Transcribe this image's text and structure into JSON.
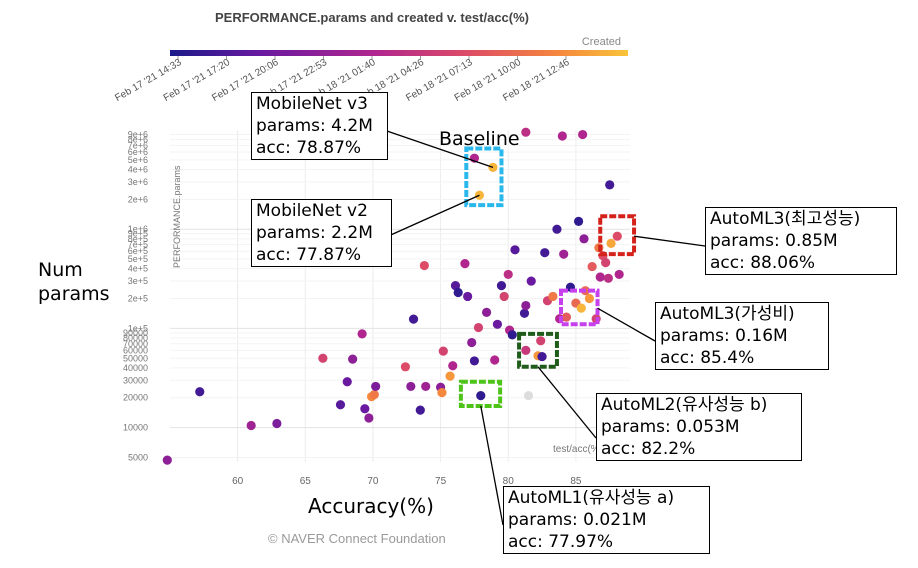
{
  "chart_data": {
    "type": "scatter",
    "title": "PERFORMANCE.params and created v. test/acc(%)",
    "xlabel": "Accuracy(%)",
    "ylabel": "Num params",
    "x_axis_title": "test/acc(%)",
    "y_axis_title": "PERFORMANCE.params",
    "xlim": [
      55,
      89
    ],
    "ylim": [
      4500,
      10000000
    ],
    "y_scale": "log",
    "grid": true,
    "x_ticks": [
      "60",
      "65",
      "70",
      "75",
      "80",
      "85"
    ],
    "y_ticks": [
      {
        "v": 5000,
        "label": "5000"
      },
      {
        "v": 10000,
        "label": "10000"
      },
      {
        "v": 20000,
        "label": "20000"
      },
      {
        "v": 30000,
        "label": "30000"
      },
      {
        "v": 40000,
        "label": "40000"
      },
      {
        "v": 50000,
        "label": "50000"
      },
      {
        "v": 60000,
        "label": "60000"
      },
      {
        "v": 70000,
        "label": "70000"
      },
      {
        "v": 80000,
        "label": "80000"
      },
      {
        "v": 90000,
        "label": "90000"
      },
      {
        "v": 100000,
        "label": "1e+5"
      },
      {
        "v": 200000,
        "label": "2e+5"
      },
      {
        "v": 300000,
        "label": "3e+5"
      },
      {
        "v": 400000,
        "label": "4e+5"
      },
      {
        "v": 500000,
        "label": "5e+5"
      },
      {
        "v": 600000,
        "label": "6e+5"
      },
      {
        "v": 700000,
        "label": "7e+5"
      },
      {
        "v": 800000,
        "label": "8e+5"
      },
      {
        "v": 900000,
        "label": "9e+5"
      },
      {
        "v": 1000000,
        "label": "1e+6"
      },
      {
        "v": 2000000,
        "label": "2e+6"
      },
      {
        "v": 3000000,
        "label": "3e+6"
      },
      {
        "v": 4000000,
        "label": "4e+6"
      },
      {
        "v": 5000000,
        "label": "5e+6"
      },
      {
        "v": 6000000,
        "label": "6e+6"
      },
      {
        "v": 7000000,
        "label": "7e+6"
      },
      {
        "v": 8000000,
        "label": "8e+6"
      },
      {
        "v": 9000000,
        "label": "9e+6"
      }
    ],
    "colorbar": {
      "label": "Created",
      "colors": [
        "#1b1a8a",
        "#6a1aa0",
        "#b0268e",
        "#dd4c66",
        "#f5883d",
        "#f8c43a"
      ],
      "ticks": [
        "Feb 17 '21 14:33",
        "Feb 17 '21 17:20",
        "Feb 17 '21 20:06",
        "Feb 17 '21 22:53",
        "Feb 18 '21 01:40",
        "Feb 18 '21 04:26",
        "Feb 18 '21 07:13",
        "Feb 18 '21 10:00",
        "Feb 18 '21 12:46"
      ]
    },
    "points": [
      {
        "x": 54.8,
        "y": 4700,
        "c": 0.3
      },
      {
        "x": 57.2,
        "y": 23000,
        "c": 0.1
      },
      {
        "x": 61.0,
        "y": 10500,
        "c": 0.35
      },
      {
        "x": 62.9,
        "y": 11000,
        "c": 0.25
      },
      {
        "x": 66.3,
        "y": 50000,
        "c": 0.55
      },
      {
        "x": 67.6,
        "y": 17000,
        "c": 0.15
      },
      {
        "x": 68.1,
        "y": 29000,
        "c": 0.2
      },
      {
        "x": 68.5,
        "y": 49000,
        "c": 0.3
      },
      {
        "x": 69.2,
        "y": 88000,
        "c": 0.4
      },
      {
        "x": 69.4,
        "y": 15500,
        "c": 0.2
      },
      {
        "x": 69.9,
        "y": 20500,
        "c": 0.8
      },
      {
        "x": 70.1,
        "y": 21500,
        "c": 0.75
      },
      {
        "x": 70.2,
        "y": 26000,
        "c": 0.25
      },
      {
        "x": 69.7,
        "y": 12500,
        "c": 0.3
      },
      {
        "x": 72.4,
        "y": 41000,
        "c": 0.6
      },
      {
        "x": 72.8,
        "y": 26000,
        "c": 0.3
      },
      {
        "x": 73.0,
        "y": 124000,
        "c": 0.1
      },
      {
        "x": 73.5,
        "y": 15000,
        "c": 0.1
      },
      {
        "x": 73.8,
        "y": 430000,
        "c": 0.6
      },
      {
        "x": 73.9,
        "y": 26000,
        "c": 0.35
      },
      {
        "x": 75.0,
        "y": 25500,
        "c": 0.3
      },
      {
        "x": 75.1,
        "y": 22500,
        "c": 0.8
      },
      {
        "x": 75.2,
        "y": 59000,
        "c": 0.55
      },
      {
        "x": 75.7,
        "y": 33000,
        "c": 0.85
      },
      {
        "x": 75.9,
        "y": 42000,
        "c": 0.4
      },
      {
        "x": 76.1,
        "y": 270000,
        "c": 0.15
      },
      {
        "x": 76.3,
        "y": 230000,
        "c": 0.05
      },
      {
        "x": 76.8,
        "y": 450000,
        "c": 0.4
      },
      {
        "x": 77.0,
        "y": 210000,
        "c": 0.2
      },
      {
        "x": 77.3,
        "y": 72000,
        "c": 0.3
      },
      {
        "x": 77.5,
        "y": 47000,
        "c": 0.1
      },
      {
        "x": 77.5,
        "y": 5200000,
        "c": 0.4
      },
      {
        "x": 77.8,
        "y": 102000,
        "c": 0.55
      },
      {
        "x": 77.87,
        "y": 2200000,
        "c": 0.95
      },
      {
        "x": 77.97,
        "y": 21000,
        "c": 0.05
      },
      {
        "x": 78.4,
        "y": 145000,
        "c": 0.3
      },
      {
        "x": 78.87,
        "y": 4200000,
        "c": 0.95
      },
      {
        "x": 79.0,
        "y": 48000,
        "c": 0.4
      },
      {
        "x": 79.2,
        "y": 110000,
        "c": 0.2
      },
      {
        "x": 79.5,
        "y": 270000,
        "c": 0.1
      },
      {
        "x": 79.7,
        "y": 210000,
        "c": 0.55
      },
      {
        "x": 80.0,
        "y": 350000,
        "c": 0.45
      },
      {
        "x": 80.1,
        "y": 96000,
        "c": 0.4
      },
      {
        "x": 80.3,
        "y": 86000,
        "c": 0.05
      },
      {
        "x": 80.5,
        "y": 620000,
        "c": 0.15
      },
      {
        "x": 81.2,
        "y": 142000,
        "c": 0.1
      },
      {
        "x": 81.3,
        "y": 9500000,
        "c": 0.45
      },
      {
        "x": 81.3,
        "y": 170000,
        "c": 0.3
      },
      {
        "x": 81.3,
        "y": 60000,
        "c": 0.5
      },
      {
        "x": 81.5,
        "y": 21000,
        "c": -1
      },
      {
        "x": 81.7,
        "y": 300000,
        "c": 0.2
      },
      {
        "x": 82.2,
        "y": 53000,
        "c": 0.85
      },
      {
        "x": 82.4,
        "y": 75000,
        "c": 0.55
      },
      {
        "x": 82.5,
        "y": 52000,
        "c": 0.1
      },
      {
        "x": 82.7,
        "y": 580000,
        "c": 0.1
      },
      {
        "x": 82.9,
        "y": 190000,
        "c": 0.55
      },
      {
        "x": 83.3,
        "y": 210000,
        "c": 0.75
      },
      {
        "x": 83.6,
        "y": 1000000,
        "c": 0.1
      },
      {
        "x": 83.8,
        "y": 125000,
        "c": 0.4
      },
      {
        "x": 84.0,
        "y": 8700000,
        "c": 0.4
      },
      {
        "x": 84.1,
        "y": 560000,
        "c": 0.35
      },
      {
        "x": 84.3,
        "y": 130000,
        "c": 0.65
      },
      {
        "x": 84.6,
        "y": 260000,
        "c": 0.05
      },
      {
        "x": 85.0,
        "y": 180000,
        "c": 0.7
      },
      {
        "x": 85.2,
        "y": 1200000,
        "c": 0.05
      },
      {
        "x": 85.4,
        "y": 160000,
        "c": 0.95
      },
      {
        "x": 85.5,
        "y": 9000000,
        "c": 0.4
      },
      {
        "x": 85.6,
        "y": 800000,
        "c": 0.3
      },
      {
        "x": 85.7,
        "y": 240000,
        "c": 0.7
      },
      {
        "x": 86.0,
        "y": 200000,
        "c": 0.85
      },
      {
        "x": 86.2,
        "y": 420000,
        "c": 0.65
      },
      {
        "x": 86.5,
        "y": 125000,
        "c": 0.55
      },
      {
        "x": 86.7,
        "y": 650000,
        "c": 0.75
      },
      {
        "x": 86.8,
        "y": 330000,
        "c": 0.4
      },
      {
        "x": 87.0,
        "y": 540000,
        "c": 0.6
      },
      {
        "x": 87.2,
        "y": 460000,
        "c": 0.55
      },
      {
        "x": 87.4,
        "y": 320000,
        "c": 0.45
      },
      {
        "x": 87.5,
        "y": 2800000,
        "c": 0.1
      },
      {
        "x": 87.6,
        "y": 720000,
        "c": 0.9
      },
      {
        "x": 88.06,
        "y": 850000,
        "c": 0.6
      },
      {
        "x": 88.2,
        "y": 350000,
        "c": 0.4
      }
    ],
    "highlight_boxes": [
      {
        "name": "baseline",
        "x0": 76.9,
        "x1": 79.5,
        "y0": 1750000,
        "y1": 6500000,
        "color": "#2ab8ec"
      },
      {
        "name": "automl3-best",
        "x0": 86.8,
        "x1": 89.3,
        "y0": 560000,
        "y1": 1350000,
        "color": "#d4221a"
      },
      {
        "name": "automl3-value",
        "x0": 83.9,
        "x1": 86.6,
        "y0": 110000,
        "y1": 240000,
        "color": "#c640ee"
      },
      {
        "name": "automl2-b",
        "x0": 80.8,
        "x1": 83.6,
        "y0": 41000,
        "y1": 88000,
        "color": "#1f5c1a"
      },
      {
        "name": "automl1-a",
        "x0": 76.5,
        "x1": 79.4,
        "y0": 16500,
        "y1": 29000,
        "color": "#4ec41a"
      }
    ]
  },
  "annotations": {
    "baseline_label": "Baseline",
    "mobilenet_v3": [
      "MobileNet v3",
      "params: 4.2M",
      "acc: 78.87%"
    ],
    "mobilenet_v2": [
      "MobileNet v2",
      "params: 2.2M",
      "acc: 77.87%"
    ],
    "automl3_best": [
      "AutoML3(최고성능)",
      "params: 0.85M",
      "acc: 88.06%"
    ],
    "automl3_value": [
      "AutoML3(가성비)",
      "params: 0.16M",
      "acc: 85.4%"
    ],
    "automl2_b": [
      "AutoML2(유사성능 b)",
      "params: 0.053M",
      "acc: 82.2%"
    ],
    "automl1_a": [
      "AutoML1(유사성능 a)",
      "params: 0.021M",
      "acc: 77.97%"
    ]
  },
  "labels": {
    "ylabel_line1": "Num",
    "ylabel_line2": "params",
    "footer": "© NAVER Connect Foundation"
  }
}
